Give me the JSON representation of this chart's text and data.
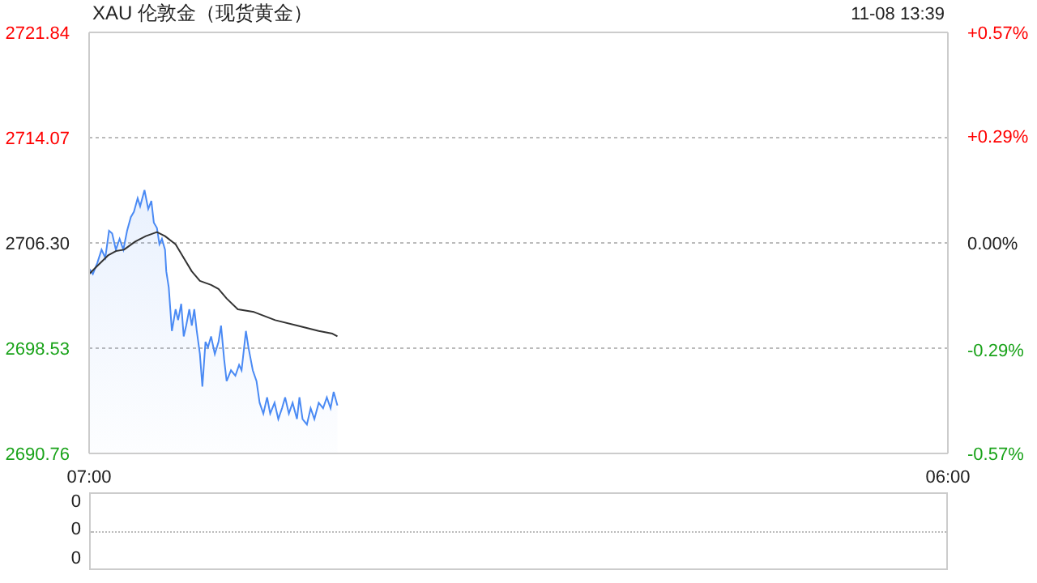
{
  "chart_data": [
    {
      "type": "area",
      "title": "XAU 伦敦金（现货黄金）",
      "annotations": [
        "11-08 13:39"
      ],
      "xlim": [
        "--11-08T07:00",
        "--11-09T06:00"
      ],
      "xticks": [
        {
          "value": "--11-08T07:00",
          "label": "07:00"
        },
        {
          "value": "--11-09T06:00",
          "label": "06:00"
        }
      ],
      "ylim": [
        2690.76,
        2721.84
      ],
      "yticks": [
        2690.76,
        2698.53,
        {
          "value": 2706.3,
          "label": "2706.30"
        },
        2714.07,
        2721.84
      ],
      "y2lim": [
        -0.57,
        0.57
      ],
      "y2ticks": [
        {
          "value": -0.57,
          "label": "-0.57%"
        },
        {
          "value": -0.29,
          "label": "-0.29%"
        },
        {
          "value": 0,
          "label": "0.00%"
        },
        {
          "value": 0.29,
          "label": "+0.29%"
        },
        {
          "value": 0.57,
          "label": "+0.57%"
        }
      ],
      "grid": "y",
      "legend": false,
      "marker": "none",
      "series": [
        {
          "color": "#4a8af4",
          "x": [
            "--11-08T07:00",
            "--11-08T07:06",
            "--11-08T07:13",
            "--11-08T07:20",
            "--11-08T07:26",
            "--11-08T07:32",
            "--11-08T07:37",
            "--11-08T07:43",
            "--11-08T07:49",
            "--11-08T07:55",
            "--11-08T08:01",
            "--11-08T08:07",
            "--11-08T08:12",
            "--11-08T08:18",
            "--11-08T08:22",
            "--11-08T08:29",
            "--11-08T08:35",
            "--11-08T08:40",
            "--11-08T08:44",
            "--11-08T08:49",
            "--11-08T08:53",
            "--11-08T08:57",
            "--11-08T09:02",
            "--11-08T09:04",
            "--11-08T09:08",
            "--11-08T09:13",
            "--11-08T09:19",
            "--11-08T09:23",
            "--11-08T09:28",
            "--11-08T09:32",
            "--11-08T09:36",
            "--11-08T09:41",
            "--11-08T09:45",
            "--11-08T09:49",
            "--11-08T09:53",
            "--11-08T09:58",
            "--11-08T10:02",
            "--11-08T10:07",
            "--11-08T10:11",
            "--11-08T10:16",
            "--11-08T10:22",
            "--11-08T10:28",
            "--11-08T10:32",
            "--11-08T10:37",
            "--11-08T10:41",
            "--11-08T10:48",
            "--11-08T10:55",
            "--11-08T11:01",
            "--11-08T11:05",
            "--11-08T11:12",
            "--11-08T11:16",
            "--11-08T11:23",
            "--11-08T11:29",
            "--11-08T11:34",
            "--11-08T11:40",
            "--11-08T11:46",
            "--11-08T11:51",
            "--11-08T11:58",
            "--11-08T12:04",
            "--11-08T12:10",
            "--11-08T12:15",
            "--11-08T12:21",
            "--11-08T12:27",
            "--11-08T12:34",
            "--11-08T12:38",
            "--11-08T12:43",
            "--11-08T12:50",
            "--11-08T12:56",
            "--11-08T13:02",
            "--11-08T13:09",
            "--11-08T13:16",
            "--11-08T13:22",
            "--11-08T13:28",
            "--11-08T13:33",
            "--11-08T13:39"
          ],
          "values": [
            2704.4,
            2704.0,
            2704.8,
            2705.8,
            2705.2,
            2707.2,
            2707.0,
            2705.8,
            2706.6,
            2705.8,
            2707.2,
            2708.2,
            2708.6,
            2709.6,
            2709.0,
            2710.2,
            2708.8,
            2709.4,
            2707.8,
            2707.4,
            2706.2,
            2706.6,
            2705.8,
            2704.2,
            2703.0,
            2699.8,
            2701.4,
            2700.6,
            2701.8,
            2699.4,
            2700.2,
            2701.4,
            2700.2,
            2701.4,
            2699.8,
            2698.1,
            2695.7,
            2699.0,
            2698.6,
            2699.4,
            2698.1,
            2699.0,
            2700.2,
            2697.7,
            2696.1,
            2696.9,
            2696.5,
            2697.3,
            2696.9,
            2699.8,
            2698.6,
            2696.9,
            2696.1,
            2694.5,
            2693.7,
            2694.9,
            2693.7,
            2694.5,
            2693.3,
            2694.1,
            2694.9,
            2693.7,
            2694.5,
            2693.3,
            2694.9,
            2693.3,
            2692.9,
            2694.1,
            2693.3,
            2694.5,
            2694.1,
            2694.9,
            2694.1,
            2695.3,
            2694.3
          ]
        },
        {
          "type": "line",
          "color": "#333333",
          "x": [
            "--11-08T07:00",
            "--11-08T07:13",
            "--11-08T07:31",
            "--11-08T07:43",
            "--11-08T07:56",
            "--11-08T08:14",
            "--11-08T08:31",
            "--11-08T08:49",
            "--11-08T09:02",
            "--11-08T09:19",
            "--11-08T09:32",
            "--11-08T09:45",
            "--11-08T09:58",
            "--11-08T10:16",
            "--11-08T10:28",
            "--11-08T10:41",
            "--11-08T10:59",
            "--11-08T11:25",
            "--11-08T11:59",
            "--11-08T12:34",
            "--11-08T13:09",
            "--11-08T13:31",
            "--11-08T13:39"
          ],
          "values": [
            2704.0,
            2704.6,
            2705.4,
            2705.7,
            2705.8,
            2706.4,
            2706.8,
            2707.1,
            2706.8,
            2706.2,
            2705.2,
            2704.2,
            2703.5,
            2703.2,
            2702.9,
            2702.2,
            2701.4,
            2701.2,
            2700.6,
            2700.2,
            2699.8,
            2699.6,
            2699.4
          ]
        }
      ]
    },
    {
      "type": "other",
      "annotations": [
        "0",
        "0",
        "0"
      ]
    }
  ]
}
